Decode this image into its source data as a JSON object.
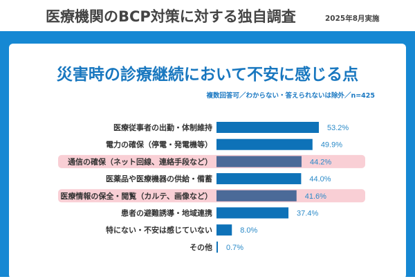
{
  "header": {
    "title": "医療機関のBCP対策に対する独自調査",
    "date": "2025年8月実施"
  },
  "colors": {
    "band": "#1688d3",
    "bar": "#0e72b8",
    "bar_highlight": "#4b6a98",
    "row_highlight": "#f9cfd5",
    "value_text": "#2a8ac8",
    "title": "#1877bf"
  },
  "chart_data": {
    "type": "bar",
    "orientation": "horizontal",
    "title": "災害時の診療継続において不安に感じる点",
    "subtitle": "複数回答可／わからない・答えられないは除外／n=425",
    "categories": [
      "医療従事者の出勤・体制維持",
      "電力の確保（停電・発電機等）",
      "通信の確保（ネット回線、連絡手段など）",
      "医薬品や医療機器の供給・備蓄",
      "医療情報の保全・閲覧（カルテ、画像など）",
      "患者の避難誘導・地域連携",
      "特にない・不安は感じていない",
      "その他"
    ],
    "values": [
      53.2,
      49.9,
      44.2,
      44.0,
      41.6,
      37.4,
      8.0,
      0.7
    ],
    "value_labels": [
      "53.2%",
      "49.9%",
      "44.2%",
      "44.0%",
      "41.6%",
      "37.4%",
      "8.0%",
      "0.7%"
    ],
    "highlighted": [
      false,
      false,
      true,
      false,
      true,
      false,
      false,
      false
    ],
    "unit": "%",
    "grid": false
  }
}
